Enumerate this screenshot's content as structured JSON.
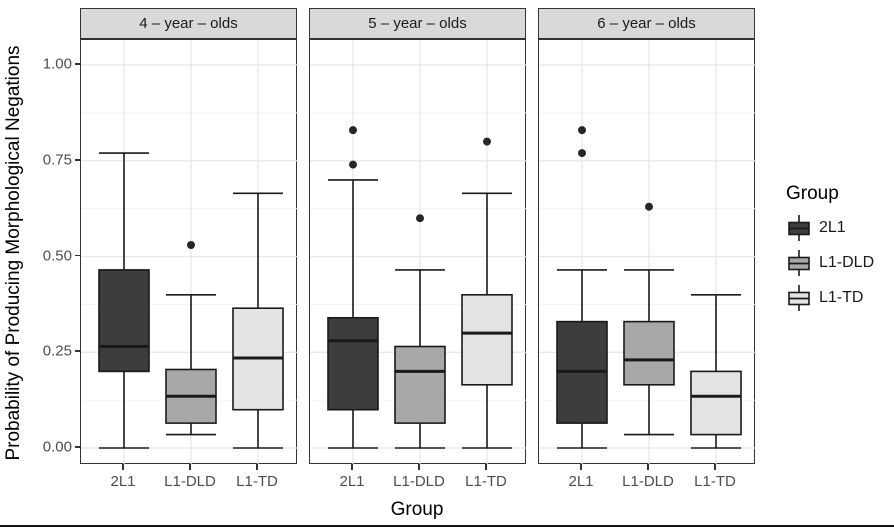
{
  "figure": {
    "y_axis": {
      "title": "Probability of Producing Morphological Negations",
      "tick_labels": [
        "1.00",
        "0.75",
        "0.50",
        "0.25",
        "0.00"
      ],
      "tick_values": [
        1.0,
        0.75,
        0.5,
        0.25,
        0.0
      ]
    },
    "x_axis": {
      "title": "Group",
      "categories": [
        "2L1",
        "L1-DLD",
        "L1-TD"
      ]
    },
    "legend": {
      "title": "Group",
      "entries": [
        {
          "label": "2L1",
          "color": "#3d3d3d"
        },
        {
          "label": "L1-DLD",
          "color": "#a8a8a8"
        },
        {
          "label": "L1-TD",
          "color": "#e4e4e4"
        }
      ]
    }
  },
  "chart_data": {
    "type": "boxplot",
    "title": "",
    "xlabel": "Group",
    "ylabel": "Probability of Producing Morphological Negations",
    "ylim": [
      0.0,
      1.0
    ],
    "yticks": [
      0.0,
      0.25,
      0.5,
      0.75,
      1.0
    ],
    "yticks_minor": [
      0.125,
      0.375,
      0.625,
      0.875
    ],
    "grid": "major+minor",
    "legend_position": "right",
    "colors": {
      "2L1": "#3d3d3d",
      "L1-DLD": "#a8a8a8",
      "L1-TD": "#e4e4e4"
    },
    "facets": [
      {
        "label": "4 – year – olds",
        "boxes": [
          {
            "group": "2L1",
            "whisker_low": 0.0,
            "q1": 0.2,
            "median": 0.265,
            "q3": 0.465,
            "whisker_high": 0.77,
            "outliers": []
          },
          {
            "group": "L1-DLD",
            "whisker_low": 0.035,
            "q1": 0.065,
            "median": 0.135,
            "q3": 0.205,
            "whisker_high": 0.4,
            "outliers": [
              0.53
            ]
          },
          {
            "group": "L1-TD",
            "whisker_low": 0.0,
            "q1": 0.1,
            "median": 0.235,
            "q3": 0.365,
            "whisker_high": 0.665,
            "outliers": []
          }
        ]
      },
      {
        "label": "5 – year – olds",
        "boxes": [
          {
            "group": "2L1",
            "whisker_low": 0.0,
            "q1": 0.1,
            "median": 0.28,
            "q3": 0.34,
            "whisker_high": 0.7,
            "outliers": [
              0.74,
              0.83
            ]
          },
          {
            "group": "L1-DLD",
            "whisker_low": 0.0,
            "q1": 0.065,
            "median": 0.2,
            "q3": 0.265,
            "whisker_high": 0.465,
            "outliers": [
              0.6
            ]
          },
          {
            "group": "L1-TD",
            "whisker_low": 0.0,
            "q1": 0.165,
            "median": 0.3,
            "q3": 0.4,
            "whisker_high": 0.665,
            "outliers": [
              0.8
            ]
          }
        ]
      },
      {
        "label": "6 – year – olds",
        "boxes": [
          {
            "group": "2L1",
            "whisker_low": 0.0,
            "q1": 0.065,
            "median": 0.2,
            "q3": 0.33,
            "whisker_high": 0.465,
            "outliers": [
              0.77,
              0.83
            ]
          },
          {
            "group": "L1-DLD",
            "whisker_low": 0.035,
            "q1": 0.165,
            "median": 0.23,
            "q3": 0.33,
            "whisker_high": 0.465,
            "outliers": [
              0.63
            ]
          },
          {
            "group": "L1-TD",
            "whisker_low": 0.0,
            "q1": 0.035,
            "median": 0.135,
            "q3": 0.2,
            "whisker_high": 0.4,
            "outliers": []
          }
        ]
      }
    ]
  },
  "style": {
    "strip_bg": "#d9d9d9",
    "panel_border": "#333333",
    "grid_major": "#e7e7e7",
    "grid_minor": "#f3f3f3",
    "box_stroke": "#1a1a1a",
    "outlier_color": "#262626",
    "tick_label_color": "#4d4d4d"
  }
}
